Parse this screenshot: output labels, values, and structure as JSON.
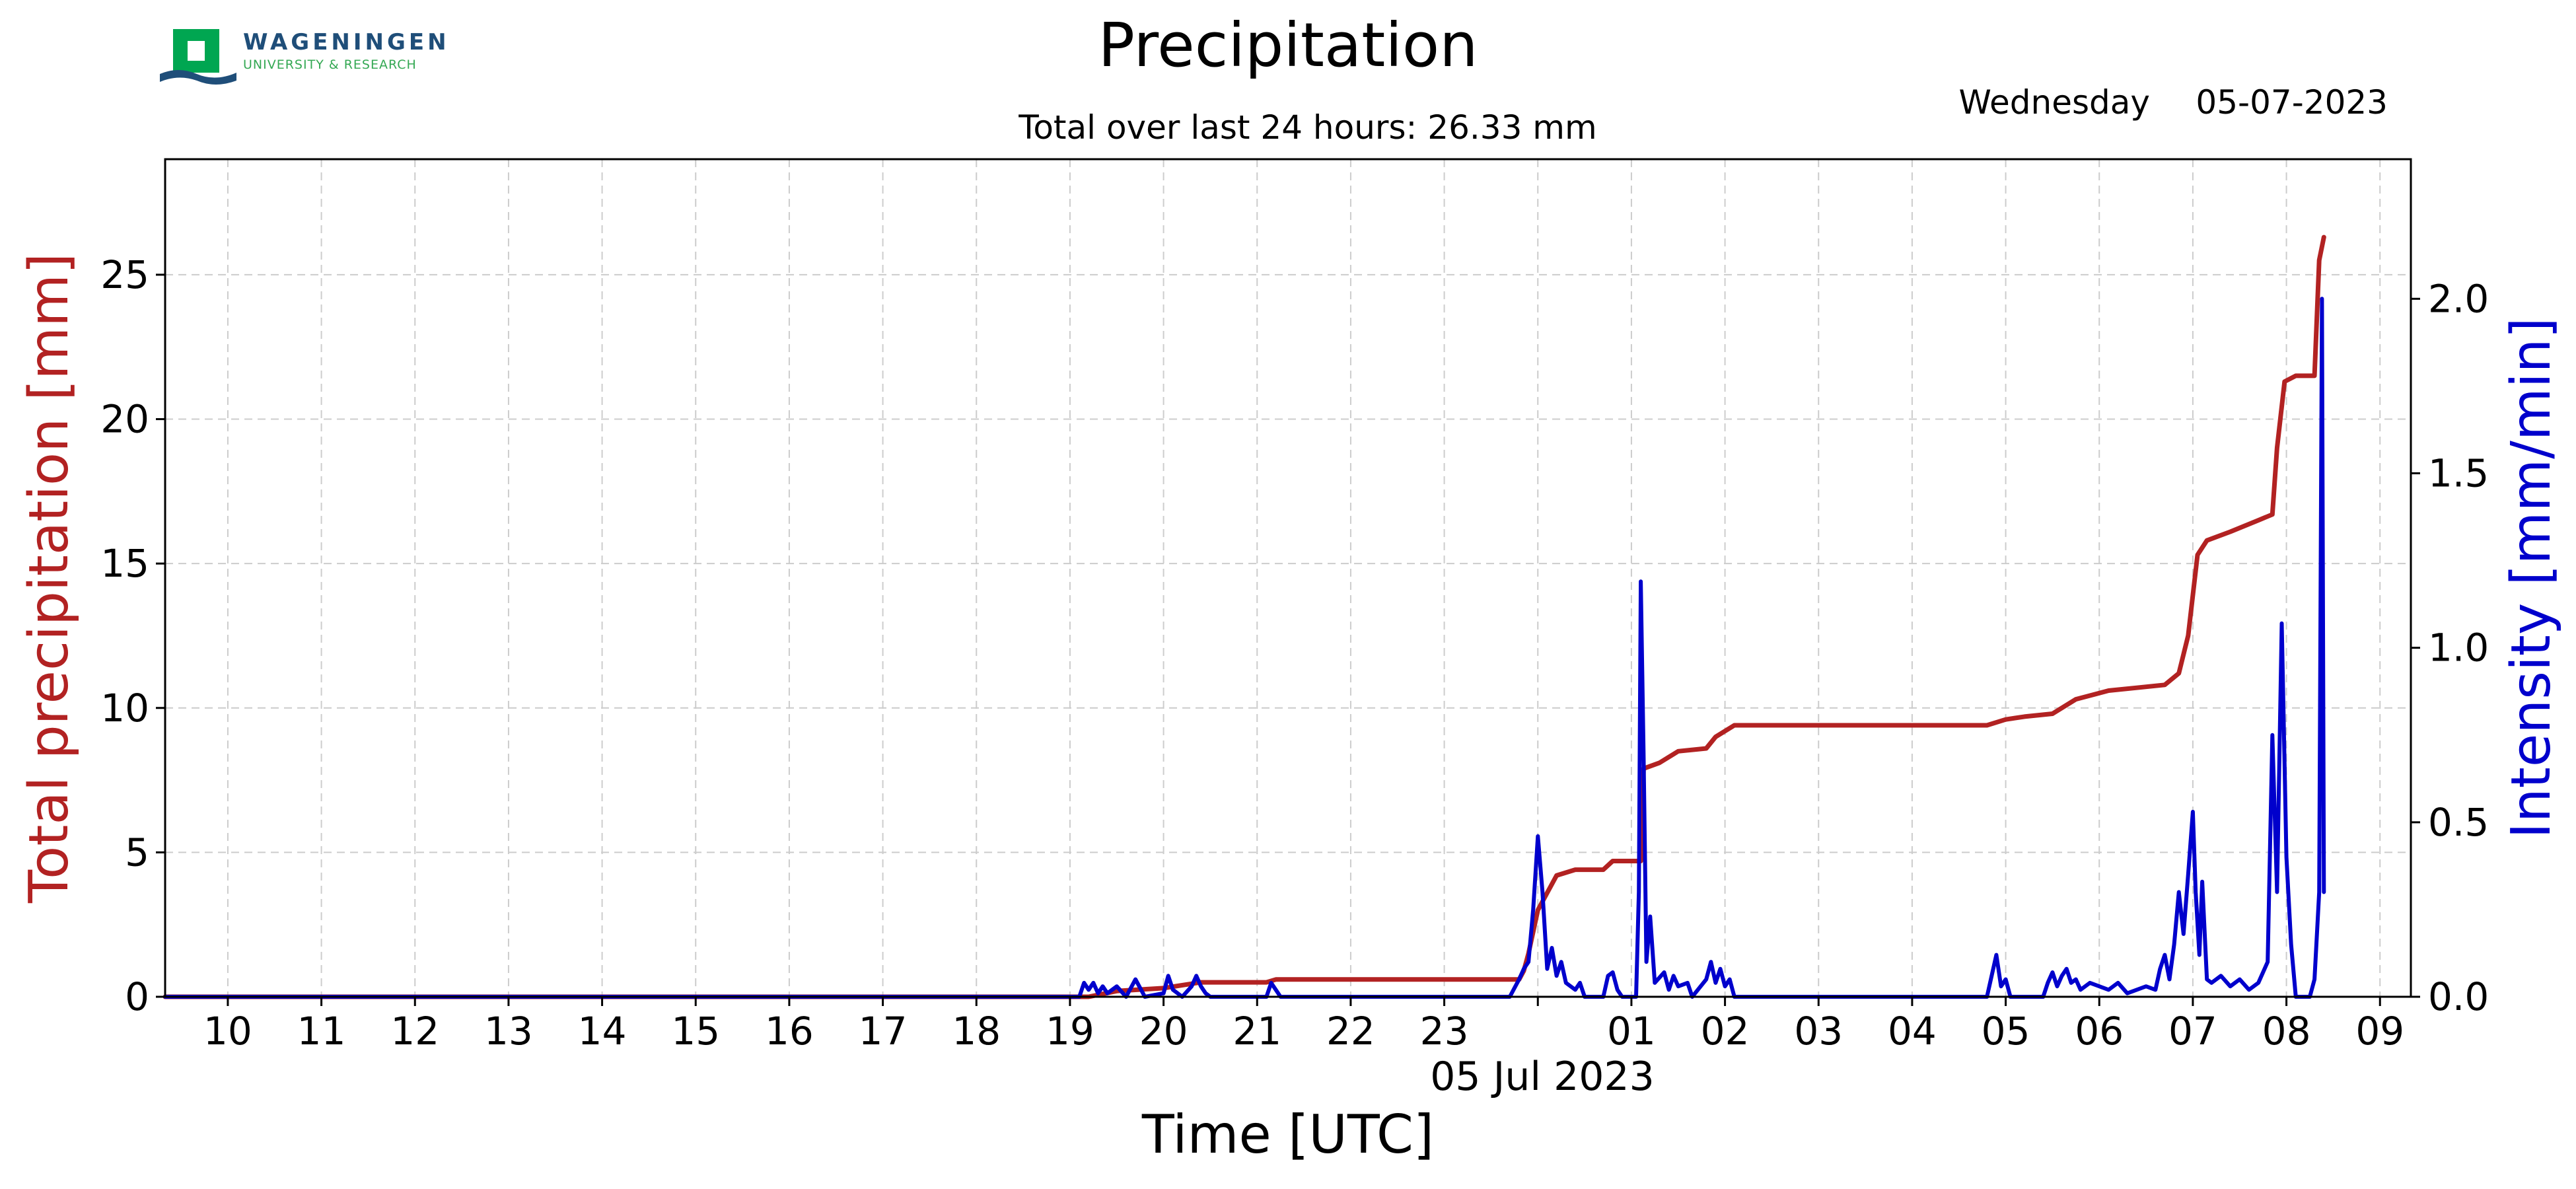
{
  "logo": {
    "name": "WAGENINGEN",
    "subtitle": "UNIVERSITY & RESEARCH",
    "green": "#00a651",
    "blue": "#1f4e79"
  },
  "header": {
    "weekday": "Wednesday",
    "date": "05-07-2023"
  },
  "chart_data": {
    "type": "line",
    "title": "Precipitation",
    "subtitle": "Total over last 24 hours: 26.33 mm",
    "xlabel": "Time [UTC]",
    "x_date_label": "05 Jul 2023",
    "x_ticks": [
      "10",
      "11",
      "12",
      "13",
      "14",
      "15",
      "16",
      "17",
      "18",
      "19",
      "20",
      "21",
      "22",
      "23",
      "",
      "01",
      "02",
      "03",
      "04",
      "05",
      "06",
      "07",
      "08",
      "09"
    ],
    "x_range_hours": [
      9.33,
      33.33
    ],
    "grid": true,
    "y_left": {
      "label": "Total precipitation [mm]",
      "lim": [
        0,
        29
      ],
      "ticks": [
        0,
        5,
        10,
        15,
        20,
        25
      ],
      "color": "#b22222"
    },
    "y_right": {
      "label": "Intensity [mm/min]",
      "lim": [
        0,
        2.4
      ],
      "ticks": [
        "0.0",
        "0.5",
        "1.0",
        "1.5",
        "2.0"
      ],
      "color": "#0000cc"
    },
    "series": [
      {
        "axis": "left",
        "color": "#b22222",
        "points": [
          [
            9.33,
            0
          ],
          [
            19.2,
            0
          ],
          [
            19.5,
            0.2
          ],
          [
            20.0,
            0.3
          ],
          [
            20.4,
            0.5
          ],
          [
            21.1,
            0.5
          ],
          [
            21.2,
            0.6
          ],
          [
            23.8,
            0.6
          ],
          [
            23.85,
            0.9
          ],
          [
            23.9,
            1.5
          ],
          [
            24.0,
            3.0
          ],
          [
            24.1,
            3.6
          ],
          [
            24.2,
            4.2
          ],
          [
            24.4,
            4.4
          ],
          [
            24.7,
            4.4
          ],
          [
            24.8,
            4.7
          ],
          [
            25.1,
            4.7
          ],
          [
            25.13,
            7.9
          ],
          [
            25.3,
            8.1
          ],
          [
            25.5,
            8.5
          ],
          [
            25.8,
            8.6
          ],
          [
            25.9,
            9.0
          ],
          [
            26.1,
            9.4
          ],
          [
            28.8,
            9.4
          ],
          [
            29.0,
            9.6
          ],
          [
            29.2,
            9.7
          ],
          [
            29.5,
            9.8
          ],
          [
            29.75,
            10.3
          ],
          [
            30.1,
            10.6
          ],
          [
            30.4,
            10.7
          ],
          [
            30.7,
            10.8
          ],
          [
            30.85,
            11.2
          ],
          [
            30.95,
            12.5
          ],
          [
            31.05,
            15.3
          ],
          [
            31.15,
            15.8
          ],
          [
            31.4,
            16.1
          ],
          [
            31.7,
            16.5
          ],
          [
            31.85,
            16.7
          ],
          [
            31.9,
            19.0
          ],
          [
            31.98,
            21.3
          ],
          [
            32.1,
            21.5
          ],
          [
            32.3,
            21.5
          ],
          [
            32.35,
            25.5
          ],
          [
            32.4,
            26.3
          ]
        ]
      },
      {
        "axis": "right",
        "color": "#0000cc",
        "points": [
          [
            9.33,
            0
          ],
          [
            19.1,
            0
          ],
          [
            19.15,
            0.04
          ],
          [
            19.2,
            0.02
          ],
          [
            19.25,
            0.04
          ],
          [
            19.3,
            0.01
          ],
          [
            19.35,
            0.03
          ],
          [
            19.4,
            0.01
          ],
          [
            19.5,
            0.03
          ],
          [
            19.6,
            0
          ],
          [
            19.7,
            0.05
          ],
          [
            19.8,
            0
          ],
          [
            20.0,
            0.01
          ],
          [
            20.05,
            0.06
          ],
          [
            20.1,
            0.02
          ],
          [
            20.2,
            0
          ],
          [
            20.3,
            0.03
          ],
          [
            20.35,
            0.06
          ],
          [
            20.4,
            0.03
          ],
          [
            20.45,
            0.01
          ],
          [
            20.5,
            0
          ],
          [
            21.1,
            0
          ],
          [
            21.15,
            0.04
          ],
          [
            21.2,
            0.02
          ],
          [
            21.25,
            0
          ],
          [
            23.7,
            0
          ],
          [
            23.8,
            0.05
          ],
          [
            23.85,
            0.08
          ],
          [
            23.9,
            0.1
          ],
          [
            23.95,
            0.25
          ],
          [
            24.0,
            0.46
          ],
          [
            24.05,
            0.3
          ],
          [
            24.1,
            0.08
          ],
          [
            24.15,
            0.14
          ],
          [
            24.2,
            0.06
          ],
          [
            24.25,
            0.1
          ],
          [
            24.3,
            0.04
          ],
          [
            24.4,
            0.02
          ],
          [
            24.45,
            0.04
          ],
          [
            24.5,
            0
          ],
          [
            24.7,
            0
          ],
          [
            24.75,
            0.06
          ],
          [
            24.8,
            0.07
          ],
          [
            24.85,
            0.02
          ],
          [
            24.9,
            0
          ],
          [
            25.05,
            0
          ],
          [
            25.08,
            0.3
          ],
          [
            25.1,
            1.19
          ],
          [
            25.13,
            0.7
          ],
          [
            25.16,
            0.1
          ],
          [
            25.2,
            0.23
          ],
          [
            25.25,
            0.04
          ],
          [
            25.35,
            0.07
          ],
          [
            25.4,
            0.02
          ],
          [
            25.45,
            0.06
          ],
          [
            25.5,
            0.03
          ],
          [
            25.6,
            0.04
          ],
          [
            25.65,
            0
          ],
          [
            25.8,
            0.05
          ],
          [
            25.85,
            0.1
          ],
          [
            25.9,
            0.04
          ],
          [
            25.95,
            0.08
          ],
          [
            26.0,
            0.03
          ],
          [
            26.05,
            0.05
          ],
          [
            26.1,
            0
          ],
          [
            28.8,
            0
          ],
          [
            28.85,
            0.06
          ],
          [
            28.9,
            0.12
          ],
          [
            28.95,
            0.03
          ],
          [
            29.0,
            0.05
          ],
          [
            29.05,
            0
          ],
          [
            29.4,
            0
          ],
          [
            29.45,
            0.04
          ],
          [
            29.5,
            0.07
          ],
          [
            29.55,
            0.03
          ],
          [
            29.6,
            0.06
          ],
          [
            29.65,
            0.08
          ],
          [
            29.7,
            0.04
          ],
          [
            29.75,
            0.05
          ],
          [
            29.8,
            0.02
          ],
          [
            29.9,
            0.04
          ],
          [
            30.0,
            0.03
          ],
          [
            30.1,
            0.02
          ],
          [
            30.2,
            0.04
          ],
          [
            30.3,
            0.01
          ],
          [
            30.5,
            0.03
          ],
          [
            30.6,
            0.02
          ],
          [
            30.65,
            0.08
          ],
          [
            30.7,
            0.12
          ],
          [
            30.75,
            0.05
          ],
          [
            30.8,
            0.15
          ],
          [
            30.85,
            0.3
          ],
          [
            30.9,
            0.18
          ],
          [
            30.95,
            0.35
          ],
          [
            31.0,
            0.53
          ],
          [
            31.03,
            0.3
          ],
          [
            31.07,
            0.12
          ],
          [
            31.1,
            0.33
          ],
          [
            31.15,
            0.05
          ],
          [
            31.2,
            0.04
          ],
          [
            31.3,
            0.06
          ],
          [
            31.4,
            0.03
          ],
          [
            31.5,
            0.05
          ],
          [
            31.6,
            0.02
          ],
          [
            31.7,
            0.04
          ],
          [
            31.8,
            0.1
          ],
          [
            31.85,
            0.75
          ],
          [
            31.9,
            0.3
          ],
          [
            31.95,
            1.07
          ],
          [
            32.0,
            0.4
          ],
          [
            32.05,
            0.15
          ],
          [
            32.1,
            0
          ],
          [
            32.25,
            0
          ],
          [
            32.3,
            0.05
          ],
          [
            32.35,
            0.3
          ],
          [
            32.38,
            2.0
          ],
          [
            32.4,
            0.3
          ]
        ]
      }
    ]
  }
}
